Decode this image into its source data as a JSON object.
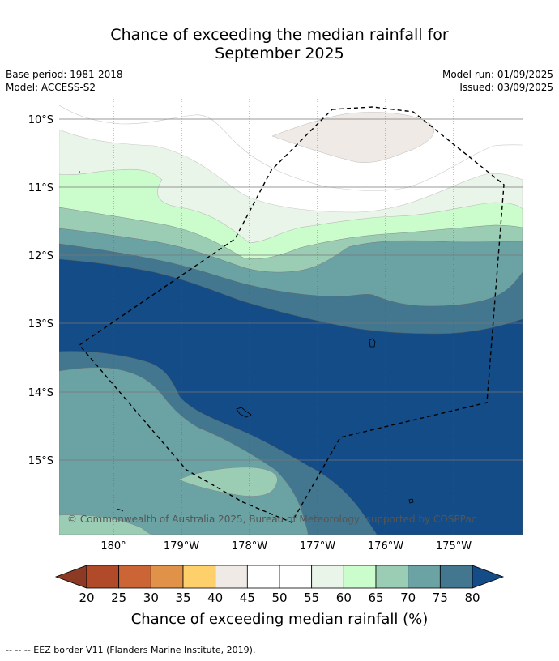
{
  "title": {
    "line1": "Chance of exceeding the median rainfall for",
    "line2": "September 2025"
  },
  "meta": {
    "base_period": "Base period: 1981-2018",
    "model": "Model: ACCESS-S2",
    "model_run": "Model run: 01/09/2025",
    "issued": "Issued: 03/09/2025"
  },
  "map": {
    "lat_labels": [
      "10°S",
      "11°S",
      "12°S",
      "13°S",
      "14°S",
      "15°S"
    ],
    "lon_labels": [
      "180°",
      "179°W",
      "178°W",
      "177°W",
      "176°W",
      "175°W"
    ],
    "copyright": "© Commonwealth of Australia 2025, Bureau of Meteorology, supported by COSPPac"
  },
  "colorbar": {
    "ticks": [
      "20",
      "25",
      "30",
      "35",
      "40",
      "45",
      "50",
      "55",
      "60",
      "65",
      "70",
      "75",
      "80"
    ],
    "colors": [
      "#b04a28",
      "#cc6535",
      "#e09348",
      "#fdd06c",
      "#efeae5",
      "#ffffff",
      "#ffffff",
      "#eaf5ea",
      "#cbfdcc",
      "#9bcdb5",
      "#6ba3a5",
      "#42778f"
    ],
    "under_color": "#8c3a24",
    "over_color": "#134c87",
    "label": "Chance of exceeding median rainfall (%)"
  },
  "footer": "--  --  -- EEZ border V11 (Flanders Marine Institute, 2019)."
}
